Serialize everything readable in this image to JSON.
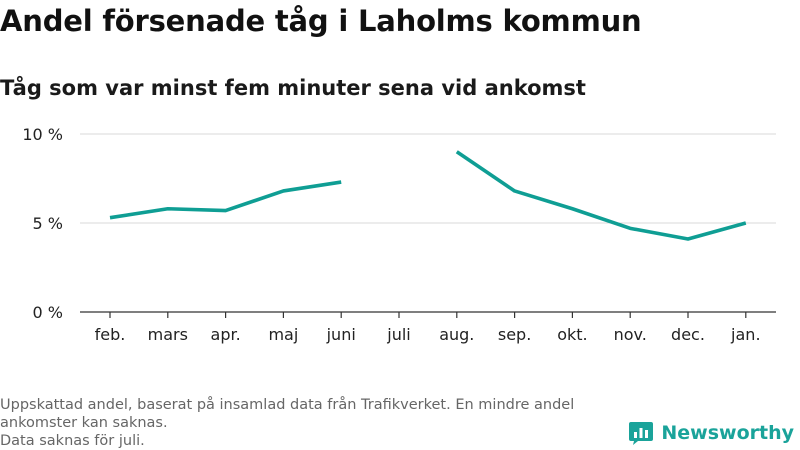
{
  "title": "Andel försenade tåg i Laholms kommun",
  "subtitle": "Tåg som var minst fem minuter sena vid ankomst",
  "footer": {
    "line1": "Uppskattad andel, baserat på insamlad data från Trafikverket. En mindre andel",
    "line2": "ankomster kan saknas.",
    "line3": "Data saknas för juli."
  },
  "brand": {
    "name": "Newsworthy",
    "icon": "newsworthy-logo-icon",
    "color": "#1aa39a"
  },
  "chart_data": {
    "type": "line",
    "title": "Andel försenade tåg i Laholms kommun",
    "subtitle": "Tåg som var minst fem minuter sena vid ankomst",
    "categories": [
      "feb.",
      "mars",
      "apr.",
      "maj",
      "juni",
      "juli",
      "aug.",
      "sep.",
      "okt.",
      "nov.",
      "dec.",
      "jan."
    ],
    "series": [
      {
        "values": [
          5.3,
          5.8,
          5.7,
          6.8,
          7.3,
          null,
          9.0,
          6.8,
          5.8,
          4.7,
          4.1,
          5.0
        ],
        "color": "#0f9e94"
      }
    ],
    "ylim": [
      0,
      10
    ],
    "yticks": [
      0,
      5,
      10
    ],
    "ytick_labels": [
      "0 %",
      "5 %",
      "10 %"
    ],
    "grid": true,
    "legend": "none"
  }
}
